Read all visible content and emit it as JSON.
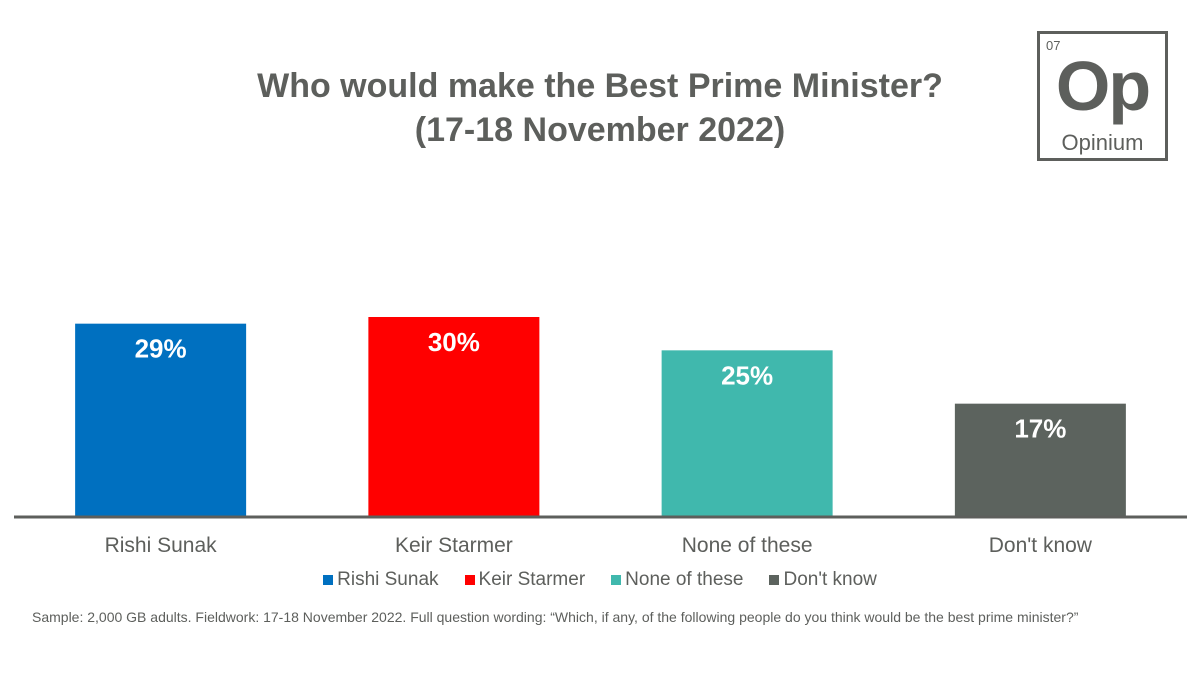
{
  "chart_data": {
    "type": "bar",
    "title": "Who would make the Best Prime Minister?",
    "subtitle": "(17-18 November 2022)",
    "categories": [
      "Rishi Sunak",
      "Keir Starmer",
      "None of these",
      "Don't know"
    ],
    "values": [
      29,
      30,
      25,
      17
    ],
    "value_labels": [
      "29%",
      "30%",
      "25%",
      "17%"
    ],
    "colors": [
      "#0070c0",
      "#ff0000",
      "#40b8ad",
      "#5c635e"
    ],
    "ylim": [
      0,
      45
    ],
    "xlabel": "",
    "ylabel": "",
    "grid": false,
    "legend": {
      "position": "bottom",
      "entries": [
        "Rishi Sunak",
        "Keir Starmer",
        "None of these",
        "Don't know"
      ]
    }
  },
  "logo": {
    "number": "07",
    "symbol": "Op",
    "name": "Opinium"
  },
  "footnote": "Sample: 2,000 GB adults. Fieldwork: 17-18 November 2022. Full question wording: “Which, if any, of the following people do you think would be the best prime minister?”"
}
